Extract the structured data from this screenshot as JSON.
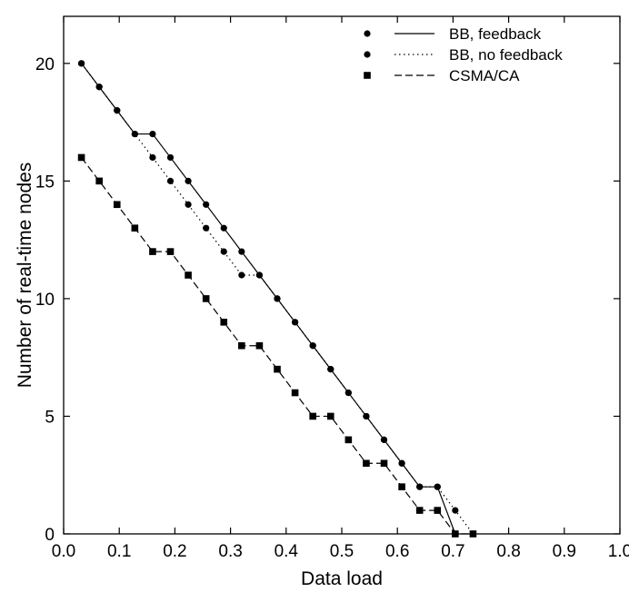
{
  "chart_data": {
    "type": "line",
    "xlabel": "Data load",
    "ylabel": "Number of real-time nodes",
    "xlim": [
      0.0,
      1.0
    ],
    "ylim": [
      0,
      22
    ],
    "xticks": [
      "0.0",
      "0.1",
      "0.2",
      "0.3",
      "0.4",
      "0.5",
      "0.6",
      "0.7",
      "0.8",
      "0.9",
      "1.0"
    ],
    "yticks": [
      "0",
      "5",
      "10",
      "15",
      "20"
    ],
    "grid": false,
    "legend_position": "top-right",
    "series": [
      {
        "name": "BB, feedback",
        "marker": "circle",
        "dash": "solid",
        "points": [
          [
            0.032,
            20
          ],
          [
            0.064,
            19
          ],
          [
            0.096,
            18
          ],
          [
            0.128,
            17
          ],
          [
            0.16,
            17
          ],
          [
            0.192,
            16
          ],
          [
            0.224,
            15
          ],
          [
            0.256,
            14
          ],
          [
            0.288,
            13
          ],
          [
            0.32,
            12
          ],
          [
            0.352,
            11
          ],
          [
            0.384,
            10
          ],
          [
            0.416,
            9
          ],
          [
            0.448,
            8
          ],
          [
            0.48,
            7
          ],
          [
            0.512,
            6
          ],
          [
            0.544,
            5
          ],
          [
            0.576,
            4
          ],
          [
            0.608,
            3
          ],
          [
            0.64,
            2
          ],
          [
            0.672,
            2
          ],
          [
            0.704,
            0
          ]
        ]
      },
      {
        "name": "BB, no feedback",
        "marker": "circle",
        "dash": "dotted",
        "points": [
          [
            0.032,
            20
          ],
          [
            0.064,
            19
          ],
          [
            0.096,
            18
          ],
          [
            0.128,
            17
          ],
          [
            0.16,
            16
          ],
          [
            0.192,
            15
          ],
          [
            0.224,
            14
          ],
          [
            0.256,
            13
          ],
          [
            0.288,
            12
          ],
          [
            0.32,
            11
          ],
          [
            0.352,
            11
          ],
          [
            0.384,
            10
          ],
          [
            0.416,
            9
          ],
          [
            0.448,
            8
          ],
          [
            0.48,
            7
          ],
          [
            0.512,
            6
          ],
          [
            0.544,
            5
          ],
          [
            0.576,
            4
          ],
          [
            0.608,
            3
          ],
          [
            0.64,
            2
          ],
          [
            0.672,
            2
          ],
          [
            0.704,
            1
          ],
          [
            0.736,
            0
          ]
        ]
      },
      {
        "name": "CSMA/CA",
        "marker": "square",
        "dash": "dashed",
        "points": [
          [
            0.032,
            16
          ],
          [
            0.064,
            15
          ],
          [
            0.096,
            14
          ],
          [
            0.128,
            13
          ],
          [
            0.16,
            12
          ],
          [
            0.192,
            12
          ],
          [
            0.224,
            11
          ],
          [
            0.256,
            10
          ],
          [
            0.288,
            9
          ],
          [
            0.32,
            8
          ],
          [
            0.352,
            8
          ],
          [
            0.384,
            7
          ],
          [
            0.416,
            6
          ],
          [
            0.448,
            5
          ],
          [
            0.48,
            5
          ],
          [
            0.512,
            4
          ],
          [
            0.544,
            3
          ],
          [
            0.576,
            3
          ],
          [
            0.608,
            2
          ],
          [
            0.64,
            1
          ],
          [
            0.672,
            1
          ],
          [
            0.704,
            0
          ],
          [
            0.736,
            0
          ]
        ]
      }
    ]
  }
}
